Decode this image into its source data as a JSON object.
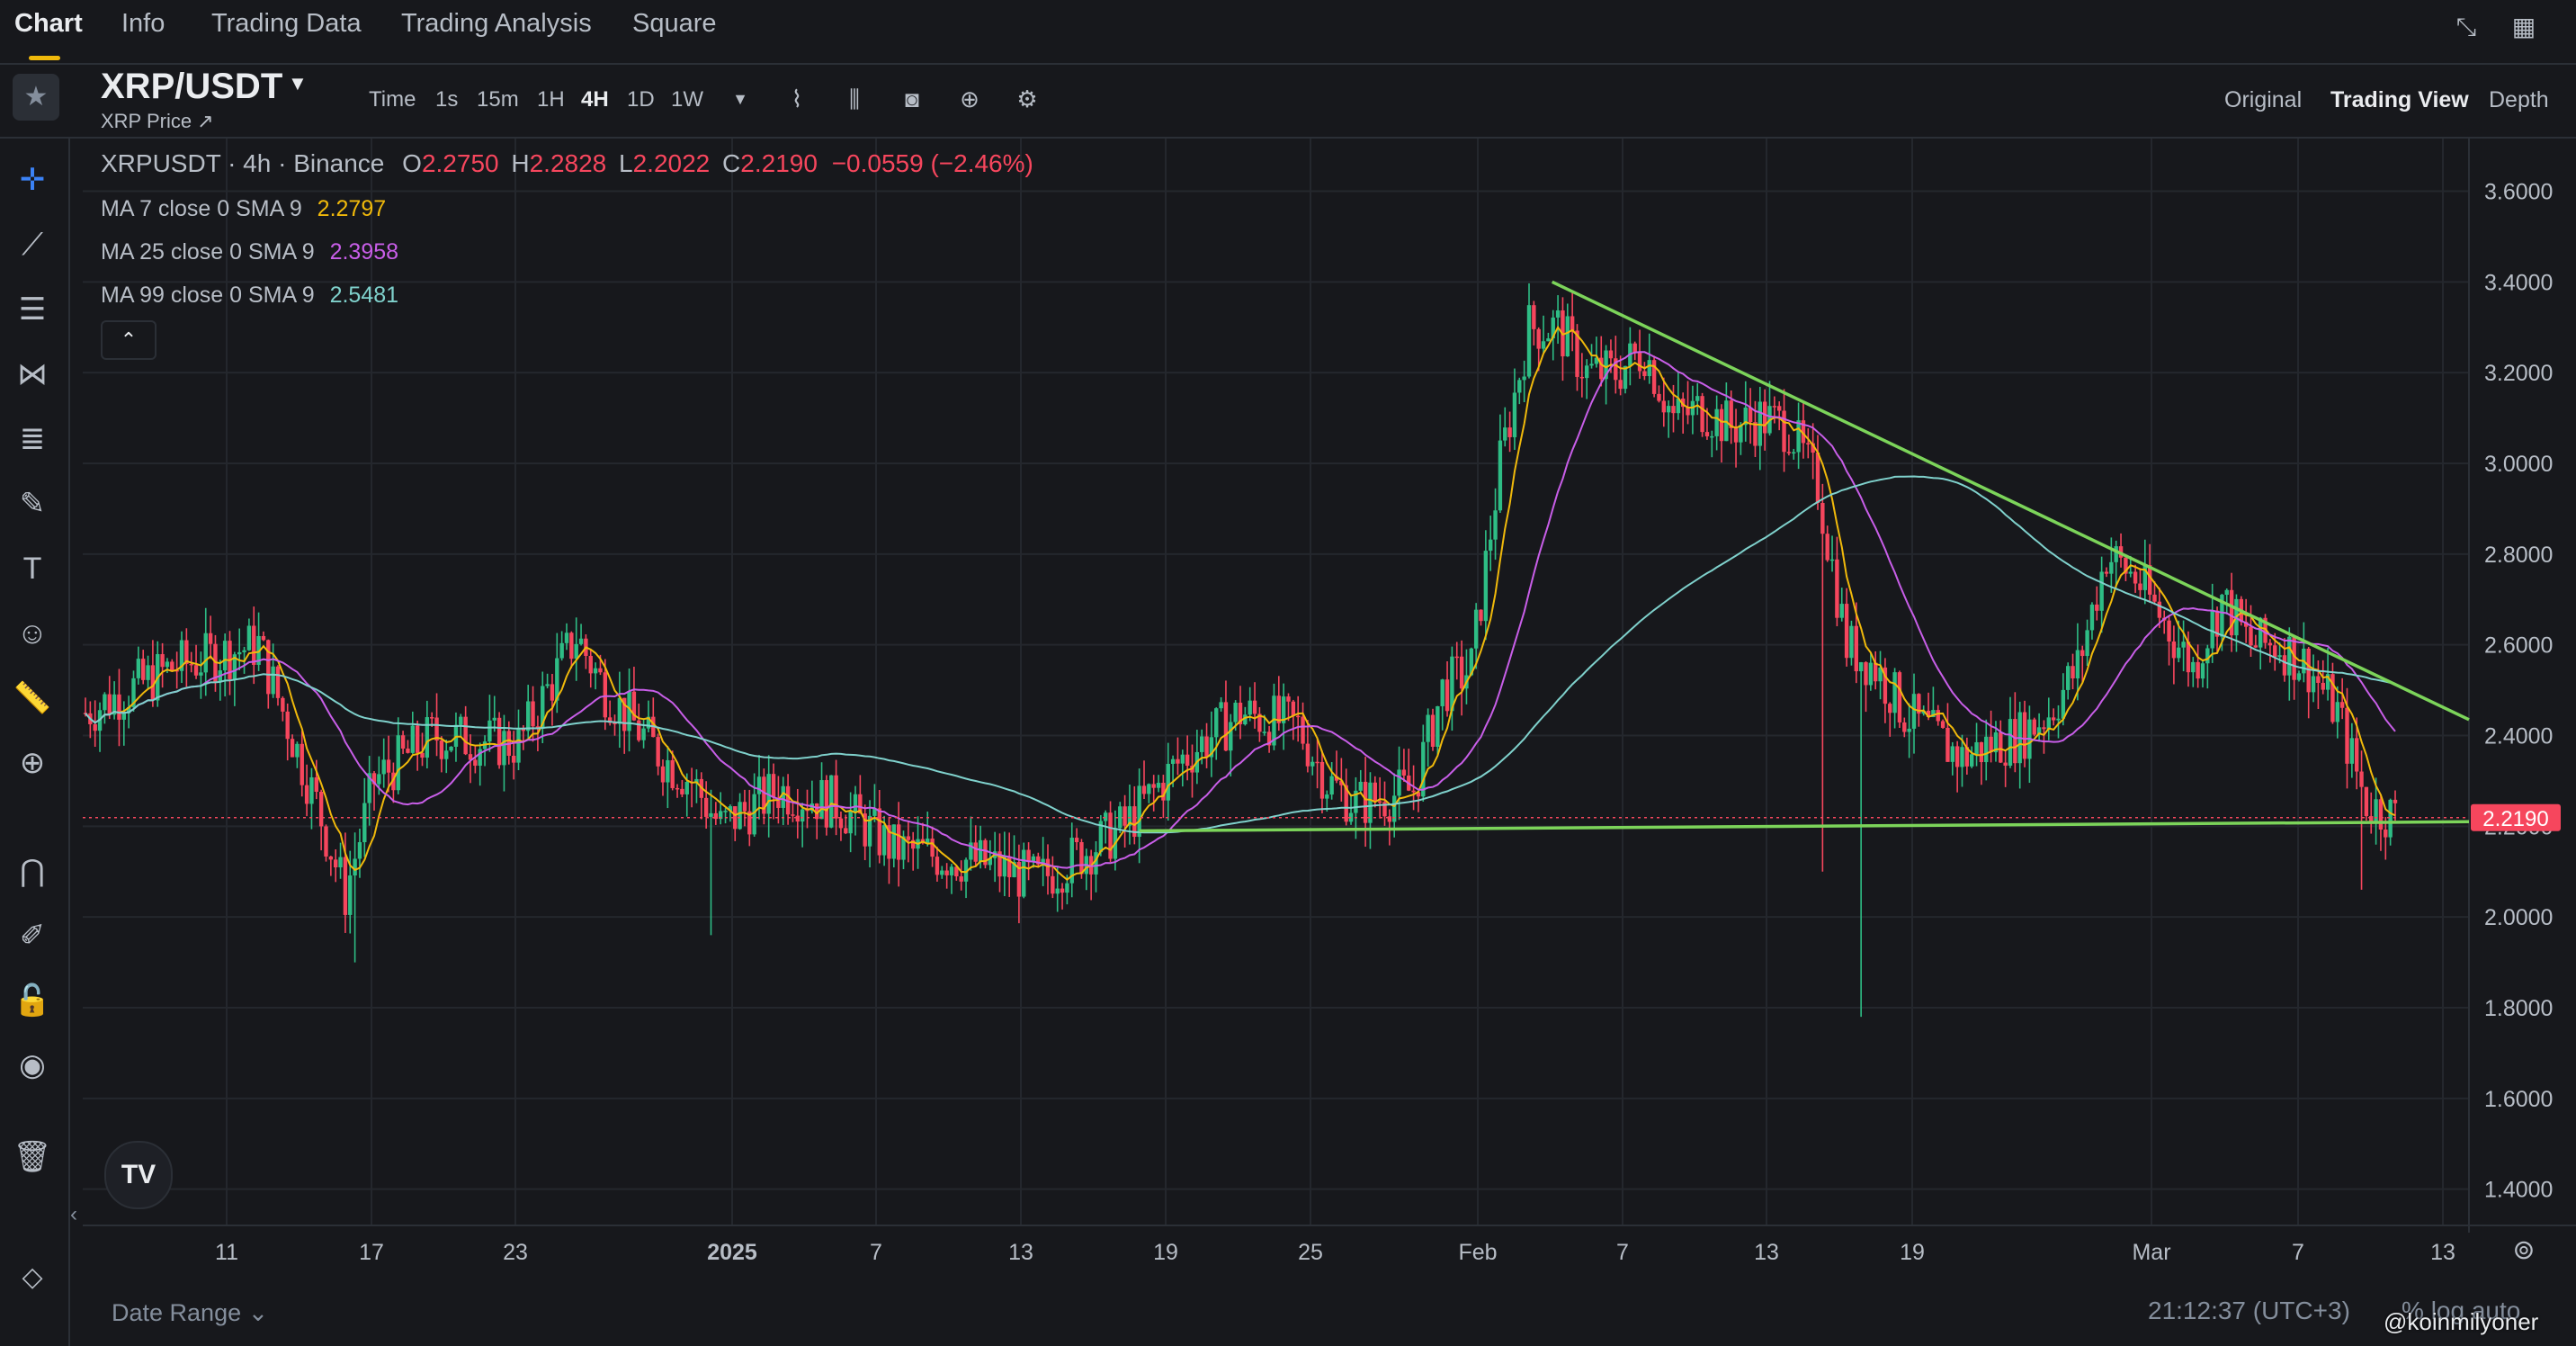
{
  "nav": {
    "tabs": [
      {
        "label": "Chart",
        "active": true
      },
      {
        "label": "Info",
        "active": false
      },
      {
        "label": "Trading Data",
        "active": false
      },
      {
        "label": "Trading Analysis",
        "active": false
      },
      {
        "label": "Square",
        "active": false
      }
    ],
    "icons": [
      "collapse-icon",
      "grid-icon"
    ]
  },
  "header": {
    "symbol": "XRP/USDT",
    "subtitle": "XRP Price ↗",
    "time_label": "Time",
    "intervals": [
      "1s",
      "15m",
      "1H",
      "4H",
      "1D",
      "1W"
    ],
    "active_interval": "4H",
    "view_modes": [
      {
        "label": "Original",
        "active": false
      },
      {
        "label": "Trading View",
        "active": true
      },
      {
        "label": "Depth",
        "active": false
      }
    ]
  },
  "legend": {
    "title": "XRPUSDT · 4h · Binance",
    "o_label": "O",
    "o_value": "2.2750",
    "h_label": "H",
    "h_value": "2.2828",
    "l_label": "L",
    "l_value": "2.2022",
    "c_label": "C",
    "c_value": "2.2190",
    "change": "−0.0559 (−2.46%)",
    "ma": [
      {
        "label": "MA 7 close 0 SMA 9",
        "value": "2.2797",
        "color": "#f0b90b"
      },
      {
        "label": "MA 25 close 0 SMA 9",
        "value": "2.3958",
        "color": "#c85ee8"
      },
      {
        "label": "MA 99 close 0 SMA 9",
        "value": "2.5481",
        "color": "#7fd1cc"
      }
    ]
  },
  "chart_data": {
    "type": "candlestick",
    "symbol": "XRPUSDT",
    "interval": "4h",
    "exchange": "Binance",
    "y_ticks": [
      "3.6000",
      "3.4000",
      "3.2000",
      "3.0000",
      "2.8000",
      "2.6000",
      "2.4000",
      "2.2000",
      "2.0000",
      "1.8000",
      "1.6000",
      "1.4000"
    ],
    "ylim": [
      1.32,
      3.72
    ],
    "x_ticks": [
      "11",
      "17",
      "23",
      "2025",
      "7",
      "13",
      "19",
      "25",
      "Feb",
      "7",
      "13",
      "19",
      "Mar",
      "7",
      "13"
    ],
    "last_price": "2.2190",
    "last_price_value": 2.219,
    "up_color": "#2ebd85",
    "down_color": "#f6465d",
    "price_path": [
      [
        0,
        2.45
      ],
      [
        3,
        2.55
      ],
      [
        6,
        2.6
      ],
      [
        8,
        2.25
      ],
      [
        9,
        2.05
      ],
      [
        10,
        2.3
      ],
      [
        12,
        2.4
      ],
      [
        15,
        2.38
      ],
      [
        17,
        2.62
      ],
      [
        18,
        2.5
      ],
      [
        20,
        2.35
      ],
      [
        21,
        2.3
      ],
      [
        22,
        2.2
      ],
      [
        24,
        2.28
      ],
      [
        26,
        2.25
      ],
      [
        28,
        2.15
      ],
      [
        31,
        2.12
      ],
      [
        33,
        2.08
      ],
      [
        36,
        2.2
      ],
      [
        38,
        2.35
      ],
      [
        40,
        2.45
      ],
      [
        42,
        2.42
      ],
      [
        43,
        2.3
      ],
      [
        44,
        2.25
      ],
      [
        46,
        2.28
      ],
      [
        47,
        2.5
      ],
      [
        48,
        2.55
      ],
      [
        49,
        3.0
      ],
      [
        50,
        3.3
      ],
      [
        51,
        3.3
      ],
      [
        52,
        3.2
      ],
      [
        53,
        3.2
      ],
      [
        54,
        3.25
      ],
      [
        55,
        3.1
      ],
      [
        56,
        3.12
      ],
      [
        57,
        3.08
      ],
      [
        58,
        3.1
      ],
      [
        59,
        3.08
      ],
      [
        60,
        2.95
      ],
      [
        61,
        2.6
      ],
      [
        62,
        2.55
      ],
      [
        63,
        2.45
      ],
      [
        64,
        2.4
      ],
      [
        65,
        2.35
      ],
      [
        66,
        2.38
      ],
      [
        67,
        2.4
      ],
      [
        68,
        2.45
      ],
      [
        69,
        2.55
      ],
      [
        70,
        2.8
      ],
      [
        71,
        2.75
      ],
      [
        72,
        2.65
      ],
      [
        73,
        2.55
      ],
      [
        74,
        2.7
      ],
      [
        75,
        2.6
      ],
      [
        76,
        2.6
      ],
      [
        77,
        2.55
      ],
      [
        78,
        2.45
      ],
      [
        79,
        2.25
      ],
      [
        80,
        2.22
      ]
    ],
    "trendlines": [
      {
        "name": "resistance",
        "from": [
          50.8,
          3.4
        ],
        "to": [
          80,
          2.6
        ],
        "extended_to_value": 2.435
      },
      {
        "name": "support",
        "from": [
          36.5,
          2.19
        ],
        "to": [
          80,
          2.21
        ],
        "extended_to_value": 2.21
      }
    ],
    "ma_series": [
      {
        "name": "MA 7",
        "color": "#f0b90b"
      },
      {
        "name": "MA 25",
        "color": "#c85ee8"
      },
      {
        "name": "MA 99",
        "color": "#7fd1cc"
      }
    ]
  },
  "bottom": {
    "date_range": "Date Range",
    "clock": "21:12:37 (UTC+3)",
    "pct": "%",
    "log": "log",
    "auto": "auto",
    "watermark": "@koinmilyoner"
  },
  "left_tools": [
    "crosshair-icon",
    "trend-line-icon",
    "horizontal-lines-icon",
    "pattern-icon",
    "fib-icon",
    "brush-icon",
    "text-icon",
    "emoji-icon",
    "ruler-icon",
    "zoom-icon",
    "magnet-icon",
    "pencil-lock-icon",
    "lock-icon",
    "eye-icon",
    "trash-icon"
  ]
}
